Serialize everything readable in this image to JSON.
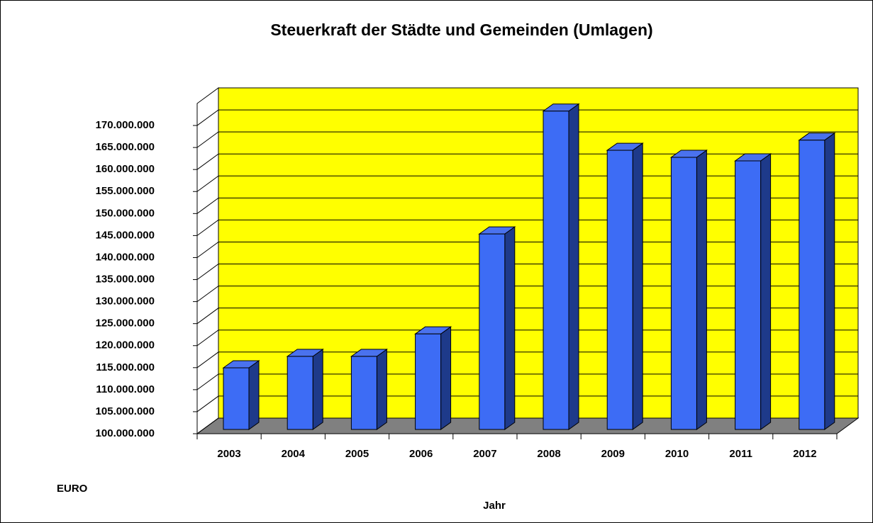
{
  "chart_data": {
    "type": "bar3d",
    "title": "Steuerkraft der Städte und Gemeinden (Umlagen)",
    "y_label": "EURO",
    "x_label": "Jahr",
    "categories": [
      "2003",
      "2004",
      "2005",
      "2006",
      "2007",
      "2008",
      "2009",
      "2010",
      "2011",
      "2012"
    ],
    "values": [
      114000000,
      116600000,
      116600000,
      121700000,
      144400000,
      172300000,
      163400000,
      161800000,
      161000000,
      165700000
    ],
    "color": "#3d6cf5",
    "wall_color": "#ffff00",
    "floor_color": "#808080",
    "ylim": [
      100000000,
      175000000
    ],
    "yticks": [
      {
        "value": 100000000,
        "label": "100.000.000"
      },
      {
        "value": 105000000,
        "label": "105.000.000"
      },
      {
        "value": 110000000,
        "label": "110.000.000"
      },
      {
        "value": 115000000,
        "label": "115.000.000"
      },
      {
        "value": 120000000,
        "label": "120.000.000"
      },
      {
        "value": 125000000,
        "label": "125.000.000"
      },
      {
        "value": 130000000,
        "label": "130.000.000"
      },
      {
        "value": 135000000,
        "label": "135.000.000"
      },
      {
        "value": 140000000,
        "label": "140.000.000"
      },
      {
        "value": 145000000,
        "label": "145.000.000"
      },
      {
        "value": 150000000,
        "label": "150.000.000"
      },
      {
        "value": 155000000,
        "label": "155.000.000"
      },
      {
        "value": 160000000,
        "label": "160.000.000"
      },
      {
        "value": 165000000,
        "label": "165.000.000"
      },
      {
        "value": 170000000,
        "label": "170.000.000"
      }
    ],
    "grid": true
  }
}
